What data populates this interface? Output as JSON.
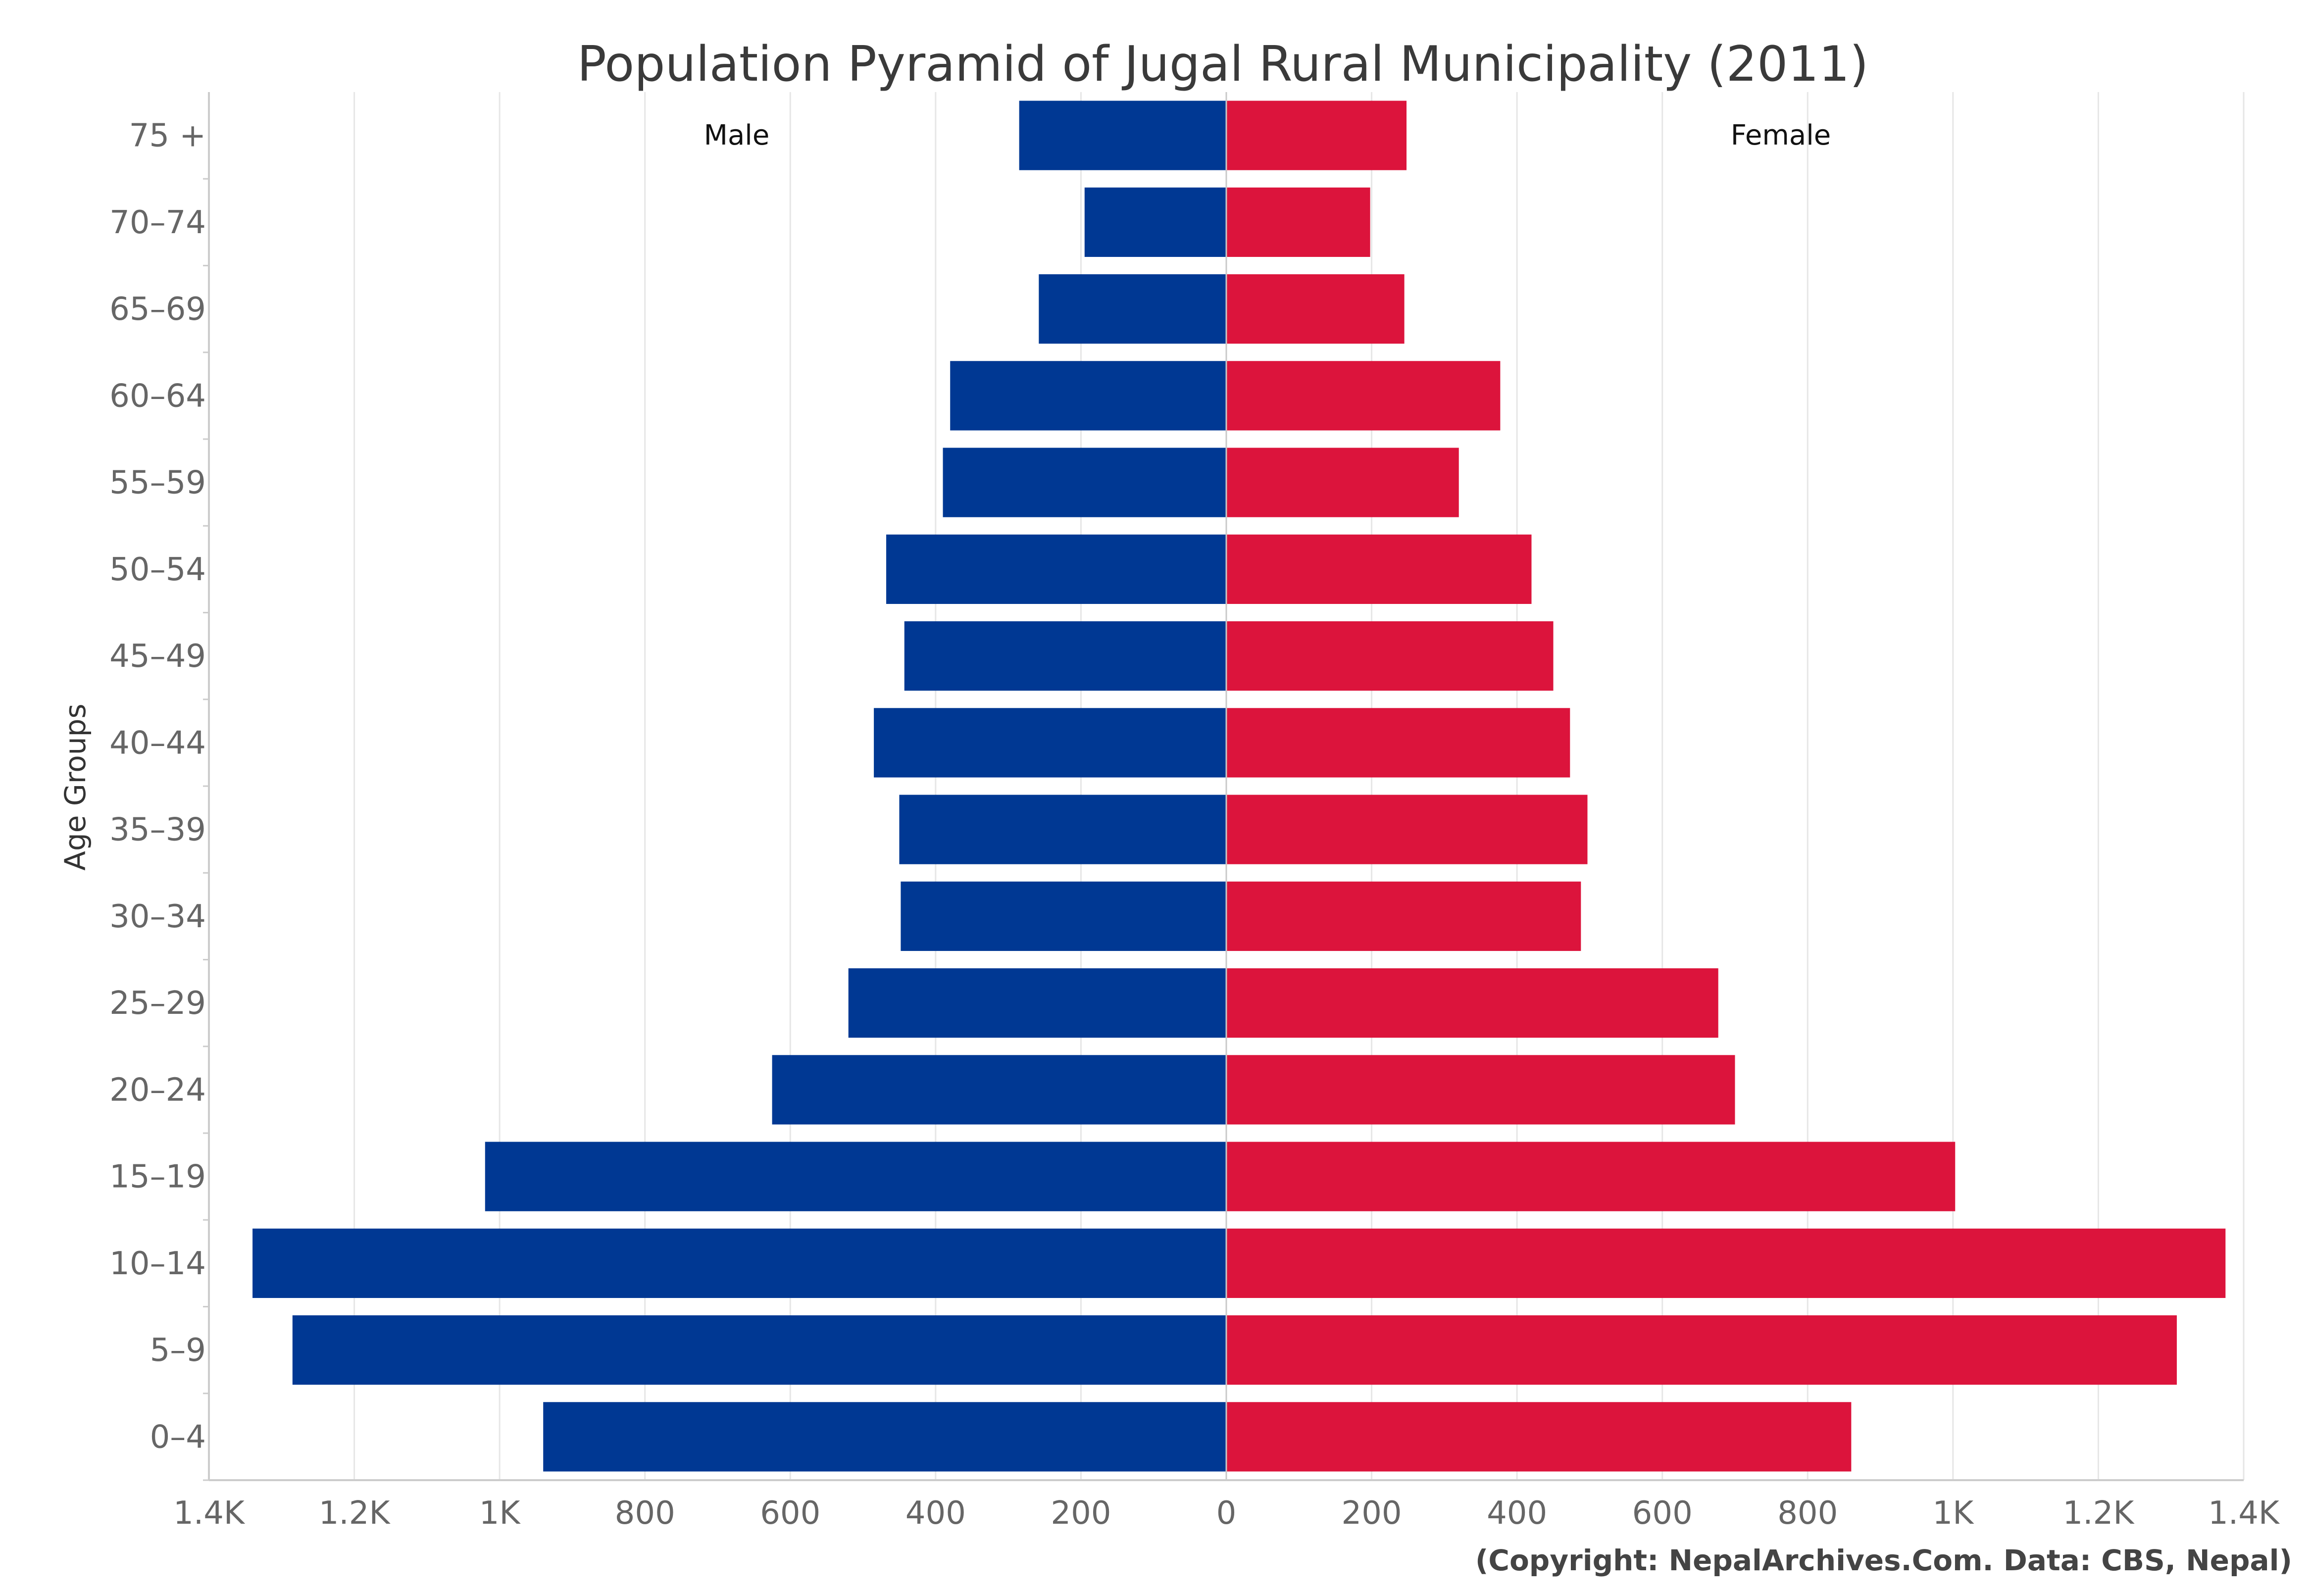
{
  "chart_data": {
    "type": "bar",
    "orientation": "horizontal-diverging",
    "title": "Population Pyramid of Jugal Rural Municipality (2011)",
    "ylabel": "Age Groups",
    "xlabel": "",
    "categories": [
      "0-4",
      "5-9",
      "10-14",
      "15-19",
      "20-24",
      "25-29",
      "30-34",
      "35-39",
      "40-44",
      "45-49",
      "50-54",
      "55-59",
      "60-64",
      "65-69",
      "70-74",
      "75 +"
    ],
    "series": [
      {
        "name": "Male",
        "color": "#003893",
        "values": [
          940,
          1285,
          1340,
          1020,
          625,
          520,
          448,
          450,
          485,
          443,
          468,
          390,
          380,
          258,
          195,
          285
        ]
      },
      {
        "name": "Female",
        "color": "#DC143C",
        "values": [
          860,
          1308,
          1375,
          1003,
          700,
          677,
          488,
          497,
          473,
          450,
          420,
          320,
          377,
          245,
          198,
          248
        ]
      }
    ],
    "xlim": [
      -1400,
      1400
    ],
    "x_ticks": [
      {
        "value": -1400,
        "label": "1.4K"
      },
      {
        "value": -1200,
        "label": "1.2K"
      },
      {
        "value": -1000,
        "label": "1K"
      },
      {
        "value": -800,
        "label": "800"
      },
      {
        "value": -600,
        "label": "600"
      },
      {
        "value": -400,
        "label": "400"
      },
      {
        "value": -200,
        "label": "200"
      },
      {
        "value": 0,
        "label": "0"
      },
      {
        "value": 200,
        "label": "200"
      },
      {
        "value": 400,
        "label": "400"
      },
      {
        "value": 600,
        "label": "600"
      },
      {
        "value": 800,
        "label": "800"
      },
      {
        "value": 1000,
        "label": "1K"
      },
      {
        "value": 1200,
        "label": "1.2K"
      },
      {
        "value": 1400,
        "label": "1.4K"
      }
    ],
    "category_tick_labels": [
      "0–4",
      "5–9",
      "10–14",
      "15–19",
      "20–24",
      "25–29",
      "30–34",
      "35–39",
      "40–44",
      "45–49",
      "50–54",
      "55–59",
      "60–64",
      "65–69",
      "70–74",
      "75 +"
    ],
    "grid": true,
    "legend": "none",
    "credit": "(Copyright: NepalArchives.Com. Data: CBS, Nepal)"
  }
}
